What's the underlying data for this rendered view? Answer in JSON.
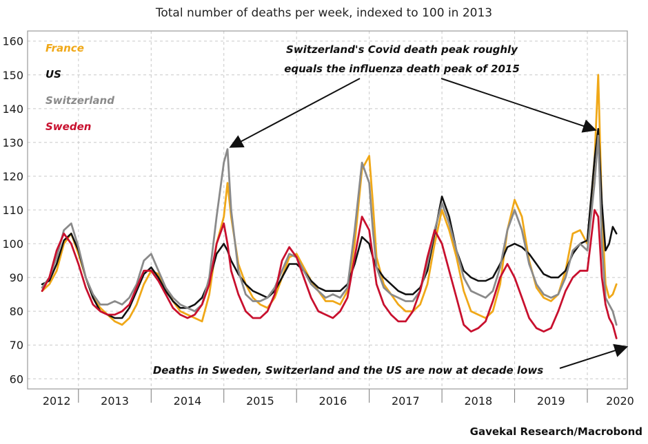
{
  "chart_data": {
    "type": "line",
    "title": "Total number of deaths per week, indexed to 100 in 2013",
    "xlabel": "",
    "ylabel": "",
    "ylim": [
      57,
      163
    ],
    "xlim": [
      2012.3,
      2020.55
    ],
    "yticks": [
      60,
      70,
      80,
      90,
      100,
      110,
      120,
      130,
      140,
      150,
      160
    ],
    "xtick_labels": [
      "2012",
      "2013",
      "2014",
      "2015",
      "2016",
      "2017",
      "2018",
      "2019",
      "2020"
    ],
    "xtick_label_positions": [
      2012.7,
      2013.5,
      2014.5,
      2015.5,
      2016.5,
      2017.5,
      2018.5,
      2019.5,
      2020.45
    ],
    "year_separators": [
      2013,
      2014,
      2015,
      2016,
      2017,
      2018,
      2019,
      2020
    ],
    "grid": true,
    "legend_placement": "top-left",
    "source": "Gavekal Research/Macrobond",
    "series": [
      {
        "name": "France",
        "color": "#f0a818",
        "x": [
          2012.5,
          2012.6,
          2012.7,
          2012.8,
          2012.9,
          2013.0,
          2013.1,
          2013.2,
          2013.3,
          2013.4,
          2013.5,
          2013.6,
          2013.7,
          2013.8,
          2013.9,
          2014.0,
          2014.1,
          2014.2,
          2014.3,
          2014.4,
          2014.5,
          2014.6,
          2014.7,
          2014.8,
          2014.9,
          2015.0,
          2015.05,
          2015.1,
          2015.2,
          2015.3,
          2015.4,
          2015.5,
          2015.6,
          2015.7,
          2015.8,
          2015.9,
          2016.0,
          2016.1,
          2016.2,
          2016.3,
          2016.4,
          2016.5,
          2016.6,
          2016.7,
          2016.8,
          2016.9,
          2017.0,
          2017.05,
          2017.1,
          2017.2,
          2017.3,
          2017.4,
          2017.5,
          2017.6,
          2017.7,
          2017.8,
          2017.9,
          2018.0,
          2018.1,
          2018.2,
          2018.3,
          2018.4,
          2018.5,
          2018.6,
          2018.7,
          2018.8,
          2018.9,
          2019.0,
          2019.1,
          2019.2,
          2019.3,
          2019.4,
          2019.5,
          2019.6,
          2019.7,
          2019.8,
          2019.9,
          2020.0,
          2020.1,
          2020.15,
          2020.2,
          2020.25,
          2020.3,
          2020.35,
          2020.4
        ],
        "y": [
          86,
          88,
          92,
          100,
          103,
          97,
          90,
          84,
          81,
          79,
          77,
          76,
          78,
          82,
          88,
          92,
          91,
          87,
          83,
          80,
          79,
          78,
          77,
          85,
          100,
          108,
          118,
          108,
          94,
          88,
          84,
          82,
          81,
          84,
          90,
          96,
          97,
          93,
          89,
          86,
          83,
          83,
          82,
          86,
          100,
          122,
          126,
          112,
          96,
          88,
          85,
          82,
          80,
          80,
          82,
          88,
          100,
          110,
          104,
          96,
          86,
          80,
          79,
          78,
          80,
          88,
          104,
          113,
          108,
          95,
          87,
          84,
          83,
          85,
          92,
          103,
          104,
          100,
          125,
          150,
          110,
          88,
          84,
          85,
          88
        ]
      },
      {
        "name": "US",
        "color": "#111111",
        "x": [
          2012.5,
          2012.6,
          2012.7,
          2012.8,
          2012.9,
          2013.0,
          2013.1,
          2013.2,
          2013.3,
          2013.4,
          2013.5,
          2013.6,
          2013.7,
          2013.8,
          2013.9,
          2014.0,
          2014.1,
          2014.2,
          2014.3,
          2014.4,
          2014.5,
          2014.6,
          2014.7,
          2014.8,
          2014.9,
          2015.0,
          2015.05,
          2015.1,
          2015.2,
          2015.3,
          2015.4,
          2015.5,
          2015.6,
          2015.7,
          2015.8,
          2015.9,
          2016.0,
          2016.1,
          2016.2,
          2016.3,
          2016.4,
          2016.5,
          2016.6,
          2016.7,
          2016.8,
          2016.9,
          2017.0,
          2017.05,
          2017.1,
          2017.2,
          2017.3,
          2017.4,
          2017.5,
          2017.6,
          2017.7,
          2017.8,
          2017.9,
          2018.0,
          2018.1,
          2018.2,
          2018.3,
          2018.4,
          2018.5,
          2018.6,
          2018.7,
          2018.8,
          2018.9,
          2019.0,
          2019.1,
          2019.2,
          2019.3,
          2019.4,
          2019.5,
          2019.6,
          2019.7,
          2019.8,
          2019.9,
          2020.0,
          2020.1,
          2020.15,
          2020.2,
          2020.25,
          2020.3,
          2020.35,
          2020.4
        ],
        "y": [
          88,
          89,
          94,
          101,
          103,
          98,
          90,
          84,
          80,
          79,
          78,
          78,
          81,
          86,
          91,
          93,
          90,
          86,
          83,
          81,
          81,
          82,
          84,
          89,
          97,
          100,
          98,
          95,
          91,
          88,
          86,
          85,
          84,
          86,
          90,
          94,
          94,
          92,
          89,
          87,
          86,
          86,
          86,
          88,
          94,
          102,
          100,
          96,
          93,
          90,
          88,
          86,
          85,
          85,
          87,
          92,
          103,
          114,
          108,
          98,
          92,
          90,
          89,
          89,
          90,
          94,
          99,
          100,
          99,
          97,
          94,
          91,
          90,
          90,
          92,
          97,
          100,
          101,
          125,
          134,
          112,
          98,
          100,
          105,
          103
        ]
      },
      {
        "name": "Switzerland",
        "color": "#8a8a8a",
        "x": [
          2012.5,
          2012.6,
          2012.7,
          2012.8,
          2012.9,
          2013.0,
          2013.1,
          2013.2,
          2013.3,
          2013.4,
          2013.5,
          2013.6,
          2013.7,
          2013.8,
          2013.9,
          2014.0,
          2014.1,
          2014.2,
          2014.3,
          2014.4,
          2014.5,
          2014.6,
          2014.7,
          2014.8,
          2014.9,
          2015.0,
          2015.05,
          2015.1,
          2015.2,
          2015.3,
          2015.4,
          2015.5,
          2015.6,
          2015.7,
          2015.8,
          2015.9,
          2016.0,
          2016.1,
          2016.2,
          2016.3,
          2016.4,
          2016.5,
          2016.6,
          2016.7,
          2016.8,
          2016.9,
          2017.0,
          2017.05,
          2017.1,
          2017.2,
          2017.3,
          2017.4,
          2017.5,
          2017.6,
          2017.7,
          2017.8,
          2017.9,
          2018.0,
          2018.1,
          2018.2,
          2018.3,
          2018.4,
          2018.5,
          2018.6,
          2018.7,
          2018.8,
          2018.9,
          2019.0,
          2019.1,
          2019.2,
          2019.3,
          2019.4,
          2019.5,
          2019.6,
          2019.7,
          2019.8,
          2019.9,
          2020.0,
          2020.1,
          2020.15,
          2020.2,
          2020.25,
          2020.3,
          2020.35,
          2020.4
        ],
        "y": [
          87,
          90,
          96,
          104,
          106,
          99,
          90,
          85,
          82,
          82,
          83,
          82,
          84,
          88,
          95,
          97,
          92,
          87,
          84,
          82,
          81,
          80,
          82,
          90,
          108,
          124,
          128,
          110,
          92,
          85,
          83,
          83,
          84,
          87,
          92,
          97,
          96,
          92,
          88,
          86,
          84,
          85,
          84,
          87,
          104,
          124,
          118,
          104,
          93,
          87,
          85,
          84,
          83,
          83,
          86,
          94,
          104,
          112,
          106,
          98,
          90,
          86,
          85,
          84,
          86,
          93,
          104,
          110,
          104,
          94,
          88,
          85,
          84,
          85,
          90,
          98,
          100,
          98,
          118,
          132,
          100,
          84,
          82,
          80,
          76
        ]
      },
      {
        "name": "Sweden",
        "color": "#c8102e",
        "x": [
          2012.5,
          2012.6,
          2012.7,
          2012.8,
          2012.9,
          2013.0,
          2013.1,
          2013.2,
          2013.3,
          2013.4,
          2013.5,
          2013.6,
          2013.7,
          2013.8,
          2013.9,
          2014.0,
          2014.1,
          2014.2,
          2014.3,
          2014.4,
          2014.5,
          2014.6,
          2014.7,
          2014.8,
          2014.9,
          2015.0,
          2015.05,
          2015.1,
          2015.2,
          2015.3,
          2015.4,
          2015.5,
          2015.6,
          2015.7,
          2015.8,
          2015.9,
          2016.0,
          2016.1,
          2016.2,
          2016.3,
          2016.4,
          2016.5,
          2016.6,
          2016.7,
          2016.8,
          2016.9,
          2017.0,
          2017.05,
          2017.1,
          2017.2,
          2017.3,
          2017.4,
          2017.5,
          2017.6,
          2017.7,
          2017.8,
          2017.9,
          2018.0,
          2018.1,
          2018.2,
          2018.3,
          2018.4,
          2018.5,
          2018.6,
          2018.7,
          2018.8,
          2018.9,
          2019.0,
          2019.1,
          2019.2,
          2019.3,
          2019.4,
          2019.5,
          2019.6,
          2019.7,
          2019.8,
          2019.9,
          2020.0,
          2020.1,
          2020.15,
          2020.2,
          2020.25,
          2020.3,
          2020.35,
          2020.4
        ],
        "y": [
          86,
          90,
          98,
          103,
          100,
          94,
          87,
          82,
          80,
          79,
          79,
          80,
          82,
          87,
          92,
          92,
          89,
          85,
          81,
          79,
          78,
          79,
          82,
          88,
          100,
          106,
          100,
          92,
          85,
          80,
          78,
          78,
          80,
          85,
          95,
          99,
          96,
          90,
          84,
          80,
          79,
          78,
          80,
          84,
          96,
          108,
          104,
          96,
          88,
          82,
          79,
          77,
          77,
          80,
          86,
          96,
          104,
          100,
          92,
          84,
          76,
          74,
          75,
          77,
          83,
          90,
          94,
          90,
          84,
          78,
          75,
          74,
          75,
          80,
          86,
          90,
          92,
          92,
          110,
          108,
          90,
          82,
          78,
          76,
          72
        ]
      }
    ],
    "legend": [
      {
        "label": "France",
        "color": "#f0a818"
      },
      {
        "label": "US",
        "color": "#111111"
      },
      {
        "label": "Switzerland",
        "color": "#8a8a8a"
      },
      {
        "label": "Sweden",
        "color": "#c8102e"
      }
    ],
    "annotations": [
      {
        "text_lines": [
          "Switzerland's Covid death peak roughly",
          "equals the influenza death peak of 2015"
        ],
        "arrows_to": [
          [
            2015.05,
            128
          ],
          [
            2020.15,
            133
          ]
        ]
      },
      {
        "text_lines": [
          "Deaths in Sweden, Switzerland and the US are now at decade lows"
        ],
        "arrows_to": [
          [
            2020.45,
            71
          ]
        ]
      }
    ]
  }
}
